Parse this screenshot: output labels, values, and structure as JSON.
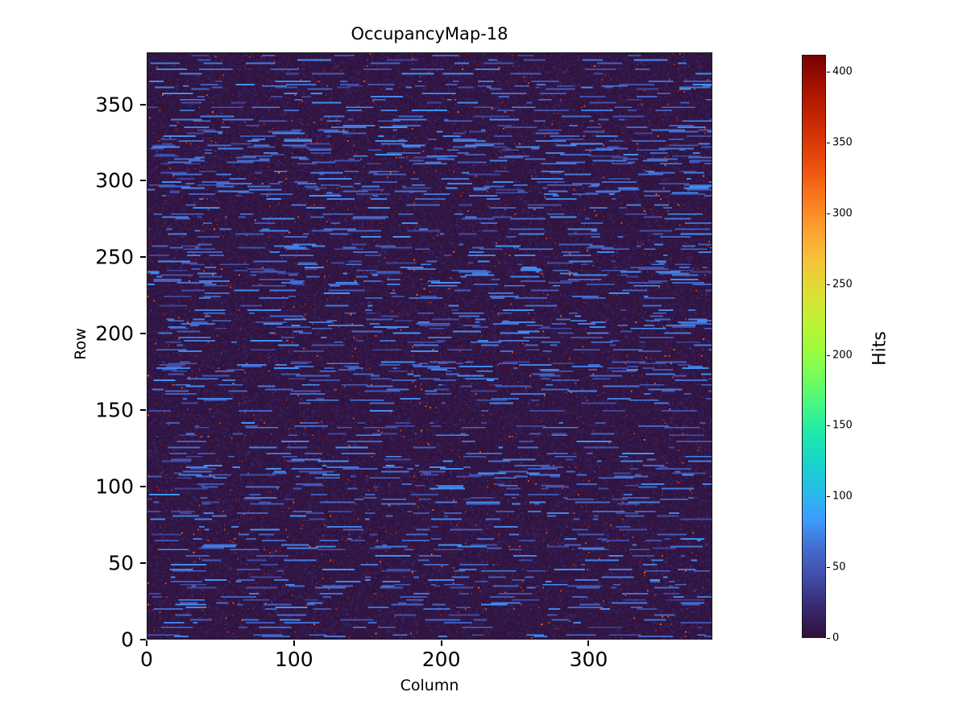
{
  "colors": {
    "background": "#ffffff",
    "text": "#000000"
  },
  "chart_data": {
    "type": "heatmap",
    "title": "OccupancyMap-18",
    "xlabel": "Column",
    "ylabel": "Row",
    "colorbar_label": "Hits",
    "grid_cols": 384,
    "grid_rows": 384,
    "x_ticks": [
      0,
      100,
      200,
      300
    ],
    "y_ticks": [
      0,
      50,
      100,
      150,
      200,
      250,
      300,
      350
    ],
    "colorbar_ticks": [
      0,
      50,
      100,
      150,
      200,
      250,
      300,
      350,
      400
    ],
    "vmin": 0,
    "vmax": 412,
    "colormap": "turbo",
    "origin": "lower",
    "legend_position": "right-colorbar",
    "grid": false,
    "data_model": {
      "description": "Detector occupancy map: near-zero dark background, sparse horizontal dashed streaks of roughly 35-80 hits on about half the rows, and rare hot pixels up to ~412 hits",
      "seed": 18,
      "background_mean": 4,
      "streak_row_fraction": 0.55,
      "streak_value_min": 35,
      "streak_value_max": 80,
      "hot_pixel_fraction": 0.006,
      "hot_value_min": 320,
      "hot_value_max": 412
    }
  }
}
